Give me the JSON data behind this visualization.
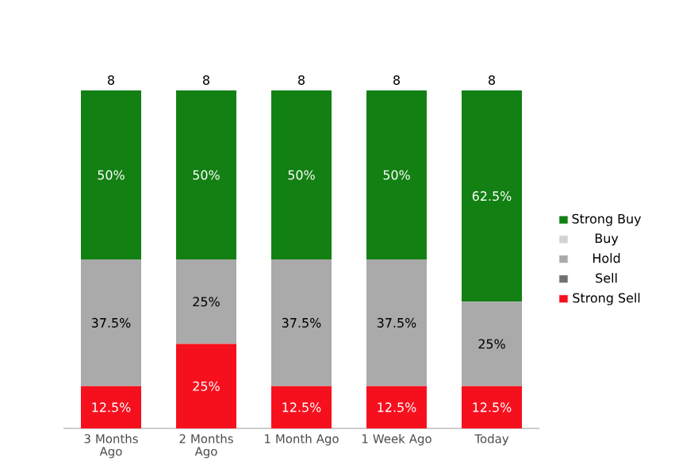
{
  "chart_data": {
    "type": "bar",
    "stacked": true,
    "legend": "right",
    "categories": [
      "3 Months Ago",
      "2 Months Ago",
      "1 Month Ago",
      "1 Week Ago",
      "Today"
    ],
    "series": [
      {
        "name": "Strong Sell",
        "color": "#f6101e",
        "values": [
          12.5,
          25,
          12.5,
          12.5,
          12.5
        ],
        "value_labels": [
          "12.5%",
          "25%",
          "12.5%",
          "12.5%",
          "12.5%"
        ]
      },
      {
        "name": "Sell",
        "color": "#707070",
        "values": [
          null,
          null,
          null,
          null,
          null
        ]
      },
      {
        "name": "Hold",
        "color": "#aaaaaa",
        "values": [
          37.5,
          25,
          37.5,
          37.5,
          25
        ],
        "value_labels": [
          "37.5%",
          "25%",
          "37.5%",
          "37.5%",
          "25%"
        ]
      },
      {
        "name": "Buy",
        "color": "#d3d3d3",
        "values": [
          null,
          null,
          null,
          null,
          null
        ]
      },
      {
        "name": "Strong Buy",
        "color": "#128012",
        "values": [
          50,
          50,
          50,
          50,
          62.5
        ],
        "value_labels": [
          "50%",
          "50%",
          "50%",
          "50%",
          "62.5%"
        ]
      }
    ],
    "annotations": [
      {
        "text": "8",
        "x": "3 Months Ago",
        "y": 100
      },
      {
        "text": "8",
        "x": "2 Months Ago",
        "y": 100
      },
      {
        "text": "8",
        "x": "1 Month Ago",
        "y": 100
      },
      {
        "text": "8",
        "x": "1 Week Ago",
        "y": 100
      },
      {
        "text": "8",
        "x": "Today",
        "y": 100
      }
    ]
  }
}
